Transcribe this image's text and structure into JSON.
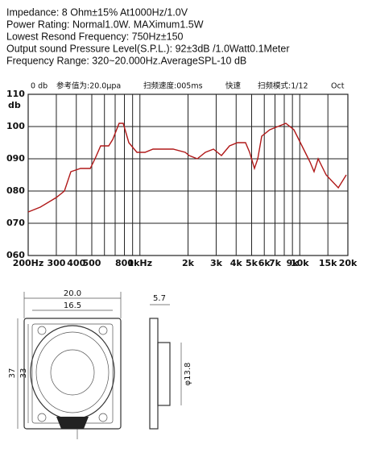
{
  "specs": [
    "Impedance: 8 Ohm±15%  At1000Hz/1.0V",
    "Power Rating: Normal1.0W.  MAXimum1.5W",
    "Lowest Resond Frequency: 750Hz±150",
    "Output sound Pressure Level(S.P.L.): 92±3dB /1.0Watt0.1Meter",
    "Frequency Range: 320~20.000Hz.AverageSPL-10 dB"
  ],
  "chart_data": {
    "type": "line",
    "y_label": "db",
    "annotations": [
      "0 db",
      "参考值为:20.0μpa",
      "扫频速度:005ms",
      "快速",
      "扫频模式:1/12",
      "Oct"
    ],
    "x": [
      200,
      238,
      300,
      337,
      370,
      425,
      489,
      524,
      568,
      638,
      676,
      741,
      786,
      853,
      957,
      1076,
      1208,
      1437,
      1614,
      1920,
      2035,
      2286,
      2566,
      2884,
      3236,
      3634,
      4080,
      4580,
      4860,
      5210,
      5460,
      5780,
      6490,
      7290,
      8190,
      9190,
      10320,
      11590,
      12280,
      13030,
      14620,
      17420,
      19540
    ],
    "values": [
      73.5,
      75,
      78,
      80,
      86,
      87,
      87,
      90,
      94,
      94,
      96,
      101,
      101,
      95,
      92,
      92,
      93,
      93,
      93,
      92,
      91,
      90,
      92,
      93,
      91,
      94,
      95,
      95,
      92,
      87,
      90,
      97,
      99,
      100,
      101,
      99,
      94,
      89,
      86,
      90,
      85,
      81,
      85
    ],
    "color": "#b01818",
    "log_x": true,
    "grid": true,
    "xlim": [
      200,
      20000
    ],
    "xticks": [
      {
        "value": 200,
        "label": "200Hz"
      },
      300,
      400,
      500,
      800,
      {
        "value": 1000,
        "label": "1kHz"
      },
      {
        "value": 2000,
        "label": "2k"
      },
      {
        "value": 3000,
        "label": "3k"
      },
      {
        "value": 4000,
        "label": "4k"
      },
      {
        "value": 5000,
        "label": "5k"
      },
      {
        "value": 6000,
        "label": "6k"
      },
      {
        "value": 7000,
        "label": "7k"
      },
      {
        "value": 9000,
        "label": "9k"
      },
      {
        "value": 10000,
        "label": "10k"
      },
      {
        "value": 15000,
        "label": "15k"
      },
      {
        "value": 20000,
        "label": "20k"
      }
    ],
    "xgrid_minor": [
      600,
      700,
      900,
      8000
    ],
    "ylim": [
      60,
      110
    ],
    "yticks": [
      {
        "value": 60,
        "label": "060"
      },
      {
        "value": 70,
        "label": "070"
      },
      {
        "value": 80,
        "label": "080"
      },
      {
        "value": 90,
        "label": "090"
      },
      100,
      110
    ]
  },
  "drawing": {
    "width_outer": "20.0",
    "width_inner": "16.5",
    "height_outer": "37",
    "height_inner": "33",
    "depth": "5.7",
    "diameter": "φ13.8"
  }
}
